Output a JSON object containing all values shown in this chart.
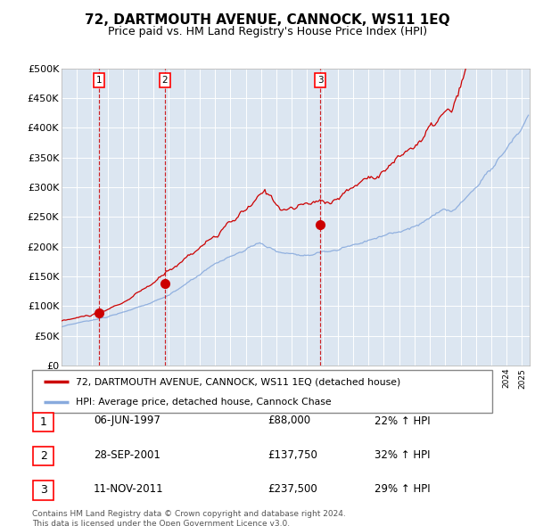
{
  "title": "72, DARTMOUTH AVENUE, CANNOCK, WS11 1EQ",
  "subtitle": "Price paid vs. HM Land Registry's House Price Index (HPI)",
  "ylim": [
    0,
    500000
  ],
  "yticks": [
    0,
    50000,
    100000,
    150000,
    200000,
    250000,
    300000,
    350000,
    400000,
    450000,
    500000
  ],
  "ytick_labels": [
    "£0",
    "£50K",
    "£100K",
    "£150K",
    "£200K",
    "£250K",
    "£300K",
    "£350K",
    "£400K",
    "£450K",
    "£500K"
  ],
  "xlim_start": 1995.0,
  "xlim_end": 2025.5,
  "plot_bg_color": "#dce6f1",
  "red_line_color": "#cc0000",
  "blue_line_color": "#88aadd",
  "grid_color": "#ffffff",
  "transactions": [
    {
      "date_num": 1997.43,
      "price": 88000,
      "label": "1"
    },
    {
      "date_num": 2001.74,
      "price": 137750,
      "label": "2"
    },
    {
      "date_num": 2011.86,
      "price": 237500,
      "label": "3"
    }
  ],
  "transaction_table": [
    {
      "num": "1",
      "date": "06-JUN-1997",
      "price": "£88,000",
      "hpi": "22% ↑ HPI"
    },
    {
      "num": "2",
      "date": "28-SEP-2001",
      "price": "£137,750",
      "hpi": "32% ↑ HPI"
    },
    {
      "num": "3",
      "date": "11-NOV-2011",
      "price": "£237,500",
      "hpi": "29% ↑ HPI"
    }
  ],
  "legend_red": "72, DARTMOUTH AVENUE, CANNOCK, WS11 1EQ (detached house)",
  "legend_blue": "HPI: Average price, detached house, Cannock Chase",
  "footer": "Contains HM Land Registry data © Crown copyright and database right 2024.\nThis data is licensed under the Open Government Licence v3.0.",
  "title_fontsize": 11,
  "subtitle_fontsize": 9
}
